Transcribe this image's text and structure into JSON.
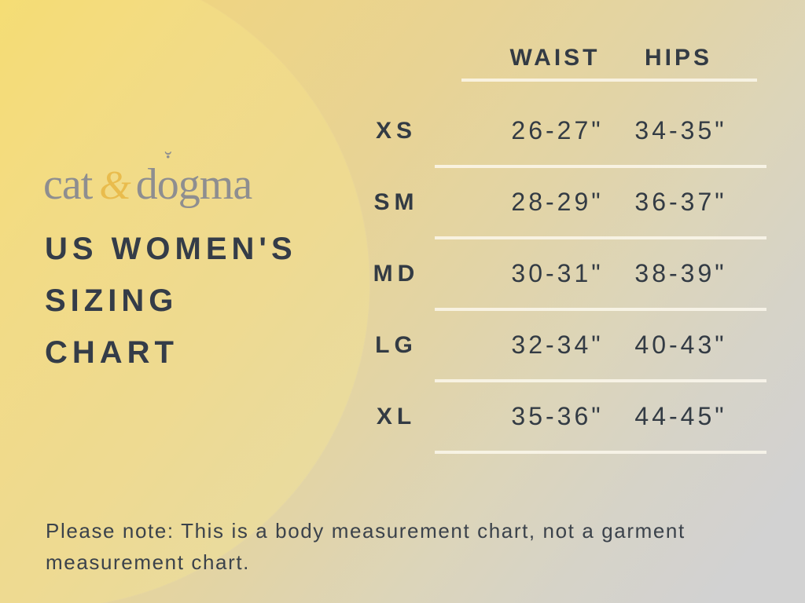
{
  "brand": {
    "word1": "cat",
    "ampersand": "&",
    "word2_prefix": "d",
    "word2_o": "o",
    "word2_suffix": "gma",
    "o_mark_breve": "˘",
    "o_mark_dot": "·"
  },
  "title": {
    "line1": "US WOMEN'S",
    "line2": "SIZING",
    "line3": "CHART"
  },
  "table": {
    "columns": {
      "waist": "WAIST",
      "hips": "HIPS"
    },
    "rows": [
      {
        "size": "XS",
        "waist": "26-27\"",
        "hips": "34-35\""
      },
      {
        "size": "SM",
        "waist": "28-29\"",
        "hips": "36-37\""
      },
      {
        "size": "MD",
        "waist": "30-31\"",
        "hips": "38-39\""
      },
      {
        "size": "LG",
        "waist": "32-34\"",
        "hips": "40-43\""
      },
      {
        "size": "XL",
        "waist": "35-36\"",
        "hips": "44-45\""
      }
    ]
  },
  "note": {
    "line1": "Please note: This is a body measurement chart, not a garment",
    "line2": "measurement chart."
  },
  "chart_data": {
    "type": "table",
    "title": "US WOMEN'S SIZING CHART",
    "categories": [
      "XS",
      "SM",
      "MD",
      "LG",
      "XL"
    ],
    "columns": [
      "WAIST",
      "HIPS"
    ],
    "series": [
      {
        "name": "WAIST",
        "values": [
          "26-27\"",
          "28-29\"",
          "30-31\"",
          "32-34\"",
          "35-36\""
        ]
      },
      {
        "name": "HIPS",
        "values": [
          "34-35\"",
          "36-37\"",
          "38-39\"",
          "40-43\"",
          "44-45\""
        ]
      }
    ],
    "note": "Please note: This is a body measurement chart, not a garment measurement chart."
  },
  "colors": {
    "accent_gold": "#e9bc4d",
    "logo_gray": "#8e8e90",
    "text_dark": "#343c48",
    "divider_cream": "#f7f3e4",
    "bg_yellow_top_left": "#f2d76d",
    "bg_gold_top_right": "#e0d09c",
    "bg_cream_bottom_left": "#ece3b4",
    "bg_gray_bottom_right": "#d2d2d2"
  }
}
